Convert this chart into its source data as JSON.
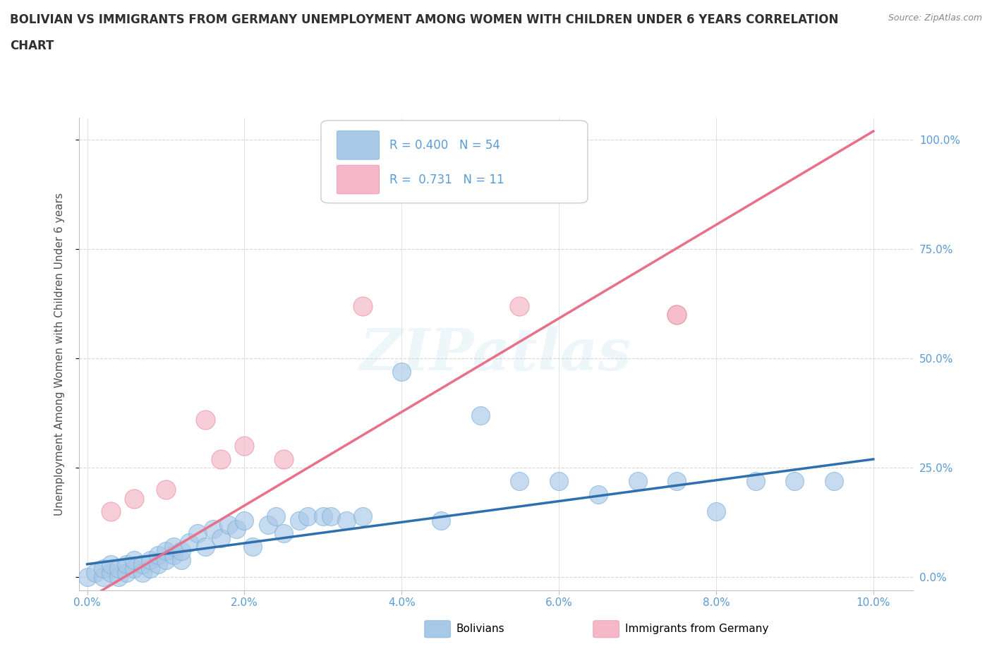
{
  "title_line1": "BOLIVIAN VS IMMIGRANTS FROM GERMANY UNEMPLOYMENT AMONG WOMEN WITH CHILDREN UNDER 6 YEARS CORRELATION",
  "title_line2": "CHART",
  "source": "Source: ZipAtlas.com",
  "ylabel": "Unemployment Among Women with Children Under 6 years",
  "xlabel_vals": [
    0.0,
    2.0,
    4.0,
    6.0,
    8.0,
    10.0
  ],
  "ylabel_vals": [
    0.0,
    25.0,
    50.0,
    75.0,
    100.0
  ],
  "xlim": [
    -0.1,
    10.5
  ],
  "ylim": [
    -3.0,
    105.0
  ],
  "bolivians_R": 0.4,
  "bolivians_N": 54,
  "germany_R": 0.731,
  "germany_N": 11,
  "bolivians_color": "#a8c8e8",
  "bolivians_edge_color": "#7aafd4",
  "germany_color": "#f4b8c8",
  "germany_edge_color": "#e890a8",
  "bolivians_line_color": "#2e6fad",
  "germany_line_color": "#e8708a",
  "legend_label_1": "Bolivians",
  "legend_label_2": "Immigrants from Germany",
  "watermark": "ZIPatlas",
  "background_color": "#ffffff",
  "grid_color": "#d8d8d8",
  "title_color": "#303030",
  "axis_label_color": "#505050",
  "tick_label_color": "#5b9bd5",
  "bolivians_x": [
    0.0,
    0.1,
    0.2,
    0.2,
    0.3,
    0.3,
    0.4,
    0.4,
    0.5,
    0.5,
    0.6,
    0.6,
    0.7,
    0.7,
    0.8,
    0.8,
    0.9,
    0.9,
    1.0,
    1.0,
    1.1,
    1.1,
    1.2,
    1.2,
    1.3,
    1.4,
    1.5,
    1.6,
    1.7,
    1.8,
    1.9,
    2.0,
    2.1,
    2.3,
    2.4,
    2.5,
    2.7,
    2.8,
    3.0,
    3.1,
    3.3,
    3.5,
    4.0,
    4.5,
    5.0,
    5.5,
    6.0,
    6.5,
    7.0,
    7.5,
    8.0,
    8.5,
    9.0,
    9.5
  ],
  "bolivians_y": [
    0.0,
    1.0,
    0.0,
    2.0,
    1.0,
    3.0,
    0.0,
    2.0,
    1.0,
    3.0,
    2.0,
    4.0,
    1.0,
    3.0,
    2.0,
    4.0,
    3.0,
    5.0,
    4.0,
    6.0,
    5.0,
    7.0,
    4.0,
    6.0,
    8.0,
    10.0,
    7.0,
    11.0,
    9.0,
    12.0,
    11.0,
    13.0,
    7.0,
    12.0,
    14.0,
    10.0,
    13.0,
    14.0,
    14.0,
    14.0,
    13.0,
    14.0,
    47.0,
    13.0,
    37.0,
    22.0,
    22.0,
    19.0,
    22.0,
    22.0,
    15.0,
    22.0,
    22.0,
    22.0
  ],
  "germany_x": [
    0.3,
    0.6,
    1.0,
    1.5,
    1.7,
    2.0,
    2.5,
    3.5,
    5.5,
    7.5,
    7.5
  ],
  "germany_y": [
    15.0,
    18.0,
    20.0,
    36.0,
    27.0,
    30.0,
    27.0,
    62.0,
    62.0,
    60.0,
    60.0
  ],
  "germany_line_x0": 0.0,
  "germany_line_y0": -5.0,
  "germany_line_x1": 10.0,
  "germany_line_y1": 102.0,
  "bolivians_line_x0": 0.0,
  "bolivians_line_y0": 3.0,
  "bolivians_line_x1": 10.0,
  "bolivians_line_y1": 27.0
}
